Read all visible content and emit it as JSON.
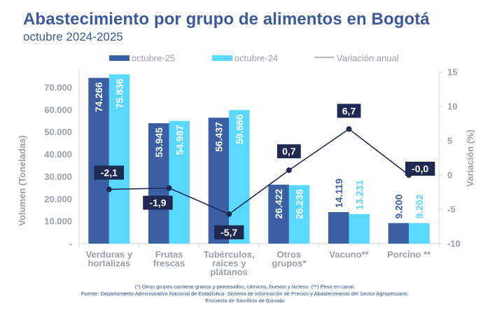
{
  "header": {
    "title": "Abastecimiento por grupo de alimentos en Bogotá",
    "subtitle": "octubre 2024-2025"
  },
  "colors": {
    "title": "#3a5a9c",
    "oct25": "#3a5fa5",
    "oct24": "#5ad8ff",
    "line": "#1e2a52",
    "axis_text": "#9aa0a8",
    "footnote": "#2d4f97"
  },
  "chart_data": {
    "type": "bar",
    "title": "Abastecimiento por grupo de alimentos en Bogotá",
    "subtitle": "octubre 2024-2025",
    "categories": [
      [
        "Verduras y",
        "hortalizas"
      ],
      [
        "Frutas",
        "frescas"
      ],
      [
        "Tubérculos,",
        "raíces y",
        "plátanos"
      ],
      [
        "Otros",
        "grupos*"
      ],
      [
        "Vacuno**"
      ],
      [
        "Porcino **"
      ]
    ],
    "series": [
      {
        "name": "octubre-25",
        "type": "bar",
        "axis": "left",
        "values": [
          74266,
          53945,
          56437,
          26422,
          14119,
          9200
        ],
        "labels": [
          "74.266",
          "53.945",
          "56.437",
          "26.422",
          "14.119",
          "9.200"
        ]
      },
      {
        "name": "octubre-24",
        "type": "bar",
        "axis": "left",
        "values": [
          75836,
          54987,
          59866,
          26238,
          13231,
          9202
        ],
        "labels": [
          "75.836",
          "54.987",
          "59.866",
          "26.238",
          "13.231",
          "9.202"
        ]
      },
      {
        "name": "Variación anual",
        "type": "line",
        "axis": "right",
        "values": [
          -2.1,
          -1.9,
          -5.7,
          0.7,
          6.7,
          -0.0
        ],
        "labels": [
          "-2,1",
          "-1,9",
          "-5,7",
          "0,7",
          "6,7",
          "-0,0"
        ]
      }
    ],
    "ylabel": "Volumen (Toneladas)",
    "ylim": [
      0,
      80000
    ],
    "yticks": [
      0,
      10000,
      20000,
      30000,
      40000,
      50000,
      60000,
      70000
    ],
    "ytick_labels": [
      "-",
      "10.000",
      "20.000",
      "30.000",
      "40.000",
      "50.000",
      "60.000",
      "70.000"
    ],
    "y2label": "Variación (%)",
    "y2lim": [
      -10,
      15
    ],
    "y2ticks": [
      -10,
      -5,
      0,
      5,
      10,
      15
    ],
    "y2tick_labels": [
      "-10",
      "-5",
      "0",
      "5",
      "10",
      "15"
    ],
    "legend": "top",
    "grid": false
  },
  "footnotes": [
    "(*) Otros grupos contiene granos y procesados, cárnicos, huevos y lacteos. (**) Peso en canal.",
    "Fuente: Departamento Administrativo Nacional de Estadística- Sistema de Información de Precios y Abastecimiento del Sector Agropecuario.",
    "Encuesta de  Sacrificio de Ganado"
  ]
}
